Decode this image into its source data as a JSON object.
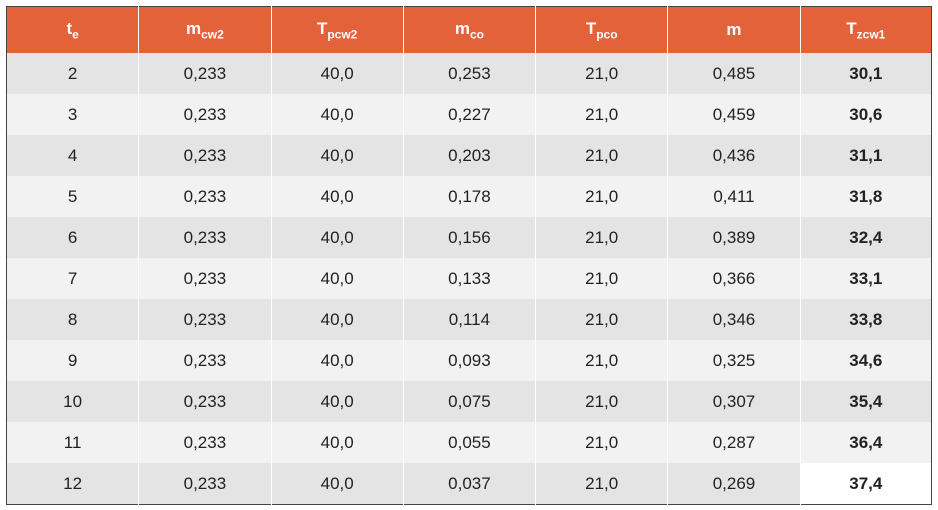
{
  "table": {
    "type": "table",
    "columns": [
      {
        "main": "t",
        "sub": "e"
      },
      {
        "main": "m",
        "sub": "cw2"
      },
      {
        "main": "T",
        "sub": "pcw2"
      },
      {
        "main": "m",
        "sub": "co"
      },
      {
        "main": "T",
        "sub": "pco"
      },
      {
        "main": "m",
        "sub": ""
      },
      {
        "main": "T",
        "sub": "zcw1"
      }
    ],
    "column_widths_pct": [
      14.3,
      14.3,
      14.3,
      14.3,
      14.3,
      14.3,
      14.2
    ],
    "header_bg": "#e4623a",
    "header_fg": "#ffffff",
    "header_fontsize_pt": 13,
    "row_odd_bg": "#e4e4e4",
    "row_even_bg": "#f2f2f2",
    "cell_fontsize_pt": 13,
    "cell_fg": "#222222",
    "border_color": "#444444",
    "cell_divider_color": "#ffffff",
    "bold_last_column": true,
    "highlight_cell": {
      "row_index": 10,
      "col_index": 6,
      "bg": "#ffffff"
    },
    "rows": [
      [
        "2",
        "0,233",
        "40,0",
        "0,253",
        "21,0",
        "0,485",
        "30,1"
      ],
      [
        "3",
        "0,233",
        "40,0",
        "0,227",
        "21,0",
        "0,459",
        "30,6"
      ],
      [
        "4",
        "0,233",
        "40,0",
        "0,203",
        "21,0",
        "0,436",
        "31,1"
      ],
      [
        "5",
        "0,233",
        "40,0",
        "0,178",
        "21,0",
        "0,411",
        "31,8"
      ],
      [
        "6",
        "0,233",
        "40,0",
        "0,156",
        "21,0",
        "0,389",
        "32,4"
      ],
      [
        "7",
        "0,233",
        "40,0",
        "0,133",
        "21,0",
        "0,366",
        "33,1"
      ],
      [
        "8",
        "0,233",
        "40,0",
        "0,114",
        "21,0",
        "0,346",
        "33,8"
      ],
      [
        "9",
        "0,233",
        "40,0",
        "0,093",
        "21,0",
        "0,325",
        "34,6"
      ],
      [
        "10",
        "0,233",
        "40,0",
        "0,075",
        "21,0",
        "0,307",
        "35,4"
      ],
      [
        "11",
        "0,233",
        "40,0",
        "0,055",
        "21,0",
        "0,287",
        "36,4"
      ],
      [
        "12",
        "0,233",
        "40,0",
        "0,037",
        "21,0",
        "0,269",
        "37,4"
      ]
    ]
  }
}
